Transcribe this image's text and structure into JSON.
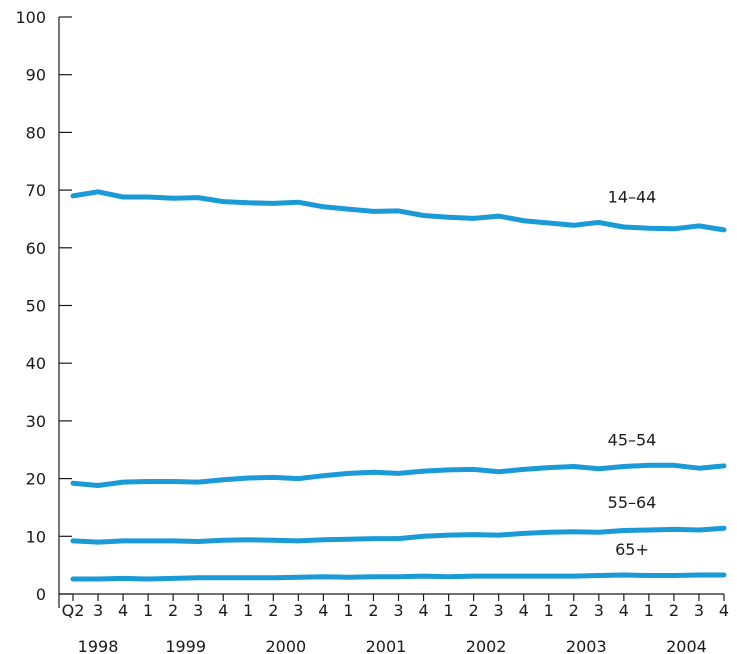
{
  "chart_data": {
    "type": "line",
    "title": "",
    "xlabel": "",
    "ylabel": "",
    "ylim": [
      0,
      100
    ],
    "y_ticks": [
      "0",
      "10",
      "20",
      "30",
      "40",
      "50",
      "60",
      "70",
      "80",
      "90",
      "100"
    ],
    "grid": false,
    "legend": "none (series labeled directly on lines)",
    "line_color": "#1A9AD6",
    "x": [
      "Q2",
      "3",
      "4",
      "1",
      "2",
      "3",
      "4",
      "1",
      "2",
      "3",
      "4",
      "1",
      "2",
      "3",
      "4",
      "1",
      "2",
      "3",
      "4",
      "1",
      "2",
      "3",
      "4",
      "1",
      "2",
      "3",
      "4"
    ],
    "years": [
      {
        "label": "1998",
        "start": 0,
        "end": 2
      },
      {
        "label": "1999",
        "start": 3,
        "end": 6
      },
      {
        "label": "2000",
        "start": 7,
        "end": 10
      },
      {
        "label": "2001",
        "start": 11,
        "end": 14
      },
      {
        "label": "2002",
        "start": 15,
        "end": 18
      },
      {
        "label": "2003",
        "start": 19,
        "end": 22
      },
      {
        "label": "2004",
        "start": 23,
        "end": 26
      }
    ],
    "series": [
      {
        "name": "14–44",
        "values": [
          69.0,
          69.7,
          68.8,
          68.8,
          68.6,
          68.7,
          68.0,
          67.8,
          67.7,
          67.9,
          67.1,
          66.7,
          66.3,
          66.4,
          65.6,
          65.3,
          65.1,
          65.5,
          64.7,
          64.3,
          63.9,
          64.4,
          63.6,
          63.4,
          63.3,
          63.8,
          63.1
        ]
      },
      {
        "name": "45–54",
        "values": [
          19.2,
          18.8,
          19.4,
          19.5,
          19.5,
          19.4,
          19.8,
          20.1,
          20.2,
          20.0,
          20.5,
          20.9,
          21.1,
          20.9,
          21.3,
          21.5,
          21.6,
          21.2,
          21.6,
          21.9,
          22.1,
          21.7,
          22.1,
          22.3,
          22.3,
          21.8,
          22.2
        ]
      },
      {
        "name": "55–64",
        "values": [
          9.2,
          9.0,
          9.2,
          9.2,
          9.2,
          9.1,
          9.3,
          9.4,
          9.3,
          9.2,
          9.4,
          9.5,
          9.6,
          9.6,
          10.0,
          10.2,
          10.3,
          10.2,
          10.5,
          10.7,
          10.8,
          10.7,
          11.0,
          11.1,
          11.2,
          11.1,
          11.4
        ]
      },
      {
        "name": "65+",
        "values": [
          2.6,
          2.6,
          2.7,
          2.6,
          2.7,
          2.8,
          2.8,
          2.8,
          2.8,
          2.9,
          3.0,
          2.9,
          3.0,
          3.0,
          3.1,
          3.0,
          3.1,
          3.1,
          3.1,
          3.1,
          3.1,
          3.2,
          3.3,
          3.2,
          3.2,
          3.3,
          3.3
        ]
      }
    ]
  }
}
